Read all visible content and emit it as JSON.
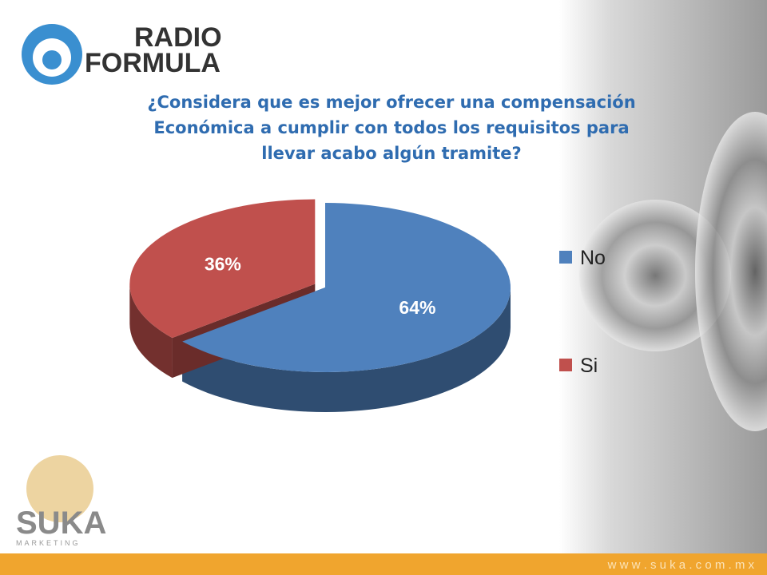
{
  "header": {
    "logo_line1": "RADIO",
    "logo_line2": "FORMULA"
  },
  "chart_data": {
    "type": "pie3d",
    "title": "¿Considera que es mejor ofrecer una compensación Económica a cumplir con todos los requisitos para llevar acabo algún tramite?",
    "categories": [
      "No",
      "Si"
    ],
    "values": [
      64,
      36
    ],
    "value_labels": [
      "64%",
      "36%"
    ],
    "colors": [
      "#4f81bd",
      "#c0504d"
    ],
    "legend": "right"
  },
  "footer": {
    "brand": "SUKA",
    "tagline": "MARKETING",
    "url": "w w w . s u k a . c o m . m x"
  }
}
